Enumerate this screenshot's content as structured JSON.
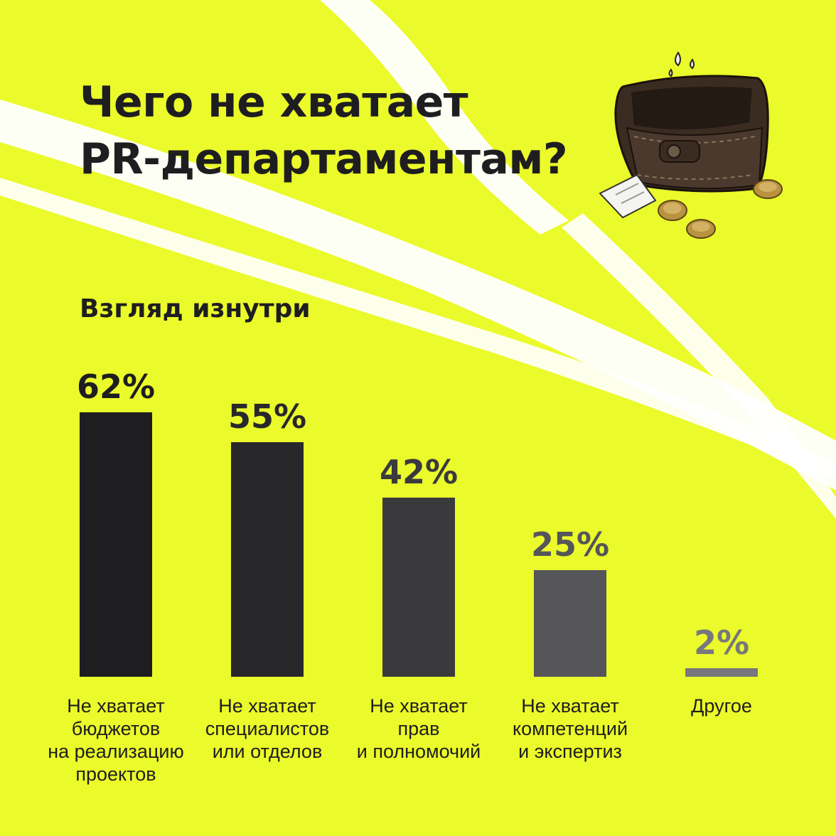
{
  "title_line1": "Чего не хватает",
  "title_line2": "PR-департаментам?",
  "subtitle": "Взгляд изнутри",
  "colors": {
    "background": "#ebfa2a",
    "streak": "#ffffff",
    "text": "#1e1e20",
    "bars": [
      "#1e1e20",
      "#28282b",
      "#3a3a3d",
      "#55555a",
      "#77777c"
    ]
  },
  "icons": [
    "wallet-icon",
    "receipt-icon",
    "coin-icon",
    "drop-icon"
  ],
  "chart_data": {
    "type": "bar",
    "categories": [
      [
        "Не хватает",
        "бюджетов",
        "на реализацию",
        "проектов"
      ],
      [
        "Не хватает",
        "специалистов",
        "или отделов"
      ],
      [
        "Не хватает",
        "прав",
        "и полномочий"
      ],
      [
        "Не хватает",
        "компетенций",
        "и экспертиз"
      ],
      [
        "Другое"
      ]
    ],
    "values": [
      62,
      55,
      42,
      25,
      2
    ],
    "value_labels": [
      "62%",
      "55%",
      "42%",
      "25%",
      "2%"
    ],
    "unit": "%",
    "ylim": [
      0,
      62
    ],
    "grid": false,
    "legend": "none"
  }
}
